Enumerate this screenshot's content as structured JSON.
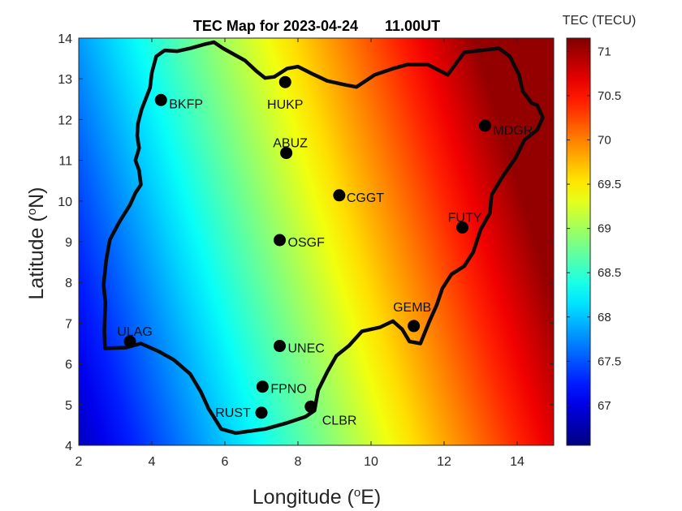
{
  "chart_data": {
    "type": "heatmap",
    "title": "TEC Map for 2023-04-24",
    "time_label": "11.00UT",
    "xlabel": {
      "prefix": "Longitude (",
      "sup": "o",
      "suffix": "E)"
    },
    "ylabel": {
      "prefix": "Latitude (",
      "sup": "o",
      "suffix": "N)"
    },
    "xlim": [
      2,
      15
    ],
    "ylim": [
      4,
      14
    ],
    "xticks": [
      "2",
      "4",
      "6",
      "8",
      "10",
      "12",
      "14"
    ],
    "yticks": [
      "4",
      "5",
      "6",
      "7",
      "8",
      "9",
      "10",
      "11",
      "12",
      "13",
      "14"
    ],
    "colorbar": {
      "label": "TEC (TECU)",
      "clim": [
        66.55,
        71.15
      ],
      "ticks": [
        "67",
        "67.5",
        "68",
        "68.5",
        "69",
        "69.5",
        "70",
        "70.5",
        "71"
      ],
      "colormap": "jet"
    },
    "stations": [
      {
        "name": "BKFP",
        "lon": 4.25,
        "lat": 12.48
      },
      {
        "name": "HUKP",
        "lon": 7.65,
        "lat": 12.92
      },
      {
        "name": "ABUZ",
        "lon": 7.68,
        "lat": 11.18
      },
      {
        "name": "MDGR",
        "lon": 13.12,
        "lat": 11.85
      },
      {
        "name": "CGGT",
        "lon": 9.13,
        "lat": 10.14
      },
      {
        "name": "FUTY",
        "lon": 12.5,
        "lat": 9.35
      },
      {
        "name": "OSGF",
        "lon": 7.5,
        "lat": 9.04
      },
      {
        "name": "GEMB",
        "lon": 11.17,
        "lat": 6.93
      },
      {
        "name": "ULAG",
        "lon": 3.4,
        "lat": 6.55
      },
      {
        "name": "UNEC",
        "lon": 7.5,
        "lat": 6.44
      },
      {
        "name": "FPNO",
        "lon": 7.03,
        "lat": 5.44
      },
      {
        "name": "RUST",
        "lon": 7.0,
        "lat": 4.8
      },
      {
        "name": "CLBR",
        "lon": 8.35,
        "lat": 4.95
      }
    ],
    "boundary": [
      [
        2.72,
        6.38
      ],
      [
        2.7,
        6.8
      ],
      [
        2.73,
        7.5
      ],
      [
        2.68,
        7.95
      ],
      [
        2.75,
        8.55
      ],
      [
        2.85,
        9.05
      ],
      [
        3.12,
        9.5
      ],
      [
        3.4,
        9.9
      ],
      [
        3.55,
        10.2
      ],
      [
        3.7,
        10.4
      ],
      [
        3.65,
        10.75
      ],
      [
        3.55,
        11.0
      ],
      [
        3.65,
        11.3
      ],
      [
        3.6,
        11.6
      ],
      [
        3.62,
        11.9
      ],
      [
        3.72,
        12.25
      ],
      [
        3.85,
        12.55
      ],
      [
        3.95,
        12.78
      ],
      [
        4.0,
        13.15
      ],
      [
        4.12,
        13.55
      ],
      [
        4.35,
        13.7
      ],
      [
        4.7,
        13.68
      ],
      [
        5.05,
        13.75
      ],
      [
        5.45,
        13.85
      ],
      [
        5.7,
        13.9
      ],
      [
        5.95,
        13.75
      ],
      [
        6.25,
        13.6
      ],
      [
        6.55,
        13.45
      ],
      [
        6.85,
        13.2
      ],
      [
        7.1,
        13.02
      ],
      [
        7.35,
        13.05
      ],
      [
        7.7,
        13.25
      ],
      [
        8.0,
        13.3
      ],
      [
        8.4,
        13.12
      ],
      [
        8.8,
        12.95
      ],
      [
        9.3,
        12.85
      ],
      [
        9.6,
        12.8
      ],
      [
        10.1,
        13.1
      ],
      [
        10.6,
        13.25
      ],
      [
        11.0,
        13.35
      ],
      [
        11.55,
        13.35
      ],
      [
        12.1,
        13.1
      ],
      [
        12.55,
        13.65
      ],
      [
        13.0,
        13.7
      ],
      [
        13.5,
        13.75
      ],
      [
        13.8,
        13.55
      ],
      [
        14.05,
        13.1
      ],
      [
        14.15,
        12.7
      ],
      [
        14.4,
        12.4
      ],
      [
        14.55,
        12.35
      ],
      [
        14.7,
        12.05
      ],
      [
        14.55,
        11.75
      ],
      [
        14.2,
        11.5
      ],
      [
        13.95,
        11.05
      ],
      [
        13.6,
        10.6
      ],
      [
        13.3,
        10.15
      ],
      [
        13.25,
        9.7
      ],
      [
        13.0,
        9.3
      ],
      [
        12.8,
        8.75
      ],
      [
        12.55,
        8.4
      ],
      [
        12.2,
        8.2
      ],
      [
        11.95,
        7.85
      ],
      [
        11.8,
        7.45
      ],
      [
        11.6,
        7.05
      ],
      [
        11.35,
        6.5
      ],
      [
        11.05,
        6.55
      ],
      [
        10.85,
        6.85
      ],
      [
        10.6,
        7.05
      ],
      [
        10.25,
        6.9
      ],
      [
        9.75,
        6.8
      ],
      [
        9.4,
        6.45
      ],
      [
        9.05,
        6.2
      ],
      [
        8.8,
        5.8
      ],
      [
        8.55,
        5.35
      ],
      [
        8.45,
        4.85
      ],
      [
        8.2,
        4.7
      ],
      [
        7.7,
        4.55
      ],
      [
        7.1,
        4.4
      ],
      [
        6.7,
        4.35
      ],
      [
        6.3,
        4.3
      ],
      [
        5.9,
        4.4
      ],
      [
        5.55,
        4.9
      ],
      [
        5.35,
        5.3
      ],
      [
        5.05,
        5.75
      ],
      [
        4.6,
        6.1
      ],
      [
        4.2,
        6.3
      ],
      [
        3.7,
        6.5
      ],
      [
        3.3,
        6.4
      ],
      [
        2.72,
        6.38
      ]
    ]
  }
}
